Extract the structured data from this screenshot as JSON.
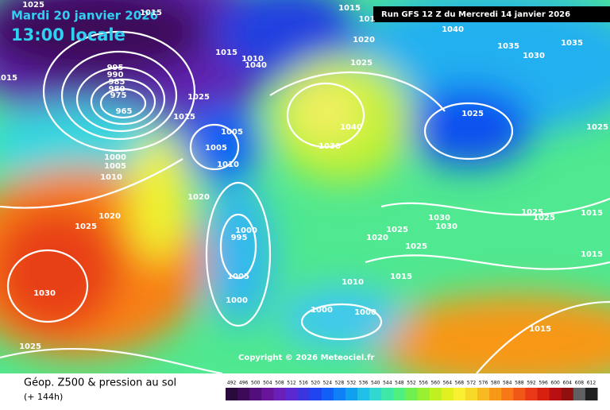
{
  "header": {
    "date": "Mardi 20 janvier 2026",
    "time": "13:00 locale",
    "run": "Run GFS 12 Z du Mercredi 14 janvier 2026"
  },
  "isobar_labels": [
    1025,
    1015,
    1015,
    101,
    1020,
    1040,
    1035,
    1030,
    1035,
    1015,
    1015,
    1010,
    1040,
    995,
    990,
    985,
    980,
    975,
    965,
    1025,
    1015,
    1005,
    1005,
    1010,
    1000,
    1005,
    1010,
    1020,
    1020,
    1025,
    1000,
    995,
    1005,
    1000,
    1030,
    1025,
    1025,
    1030,
    1040,
    1025,
    1030,
    1030,
    1025,
    1025,
    1020,
    1010,
    1015,
    1000,
    1000,
    1025,
    1025,
    1015,
    1015,
    1015,
    1025
  ],
  "copyright": "Copyright © 2026 Meteociel.fr",
  "legend": {
    "title": "Géop. Z500 & pression au sol",
    "lead_time": "(+ 144h)",
    "values": [
      492,
      496,
      500,
      504,
      508,
      512,
      516,
      520,
      524,
      528,
      532,
      536,
      540,
      544,
      548,
      552,
      556,
      560,
      564,
      568,
      572,
      576,
      580,
      584,
      588,
      592,
      596,
      600,
      604,
      608,
      612
    ],
    "colors": [
      "#2a0a3a",
      "#3d0a5a",
      "#520e7a",
      "#66159a",
      "#6a20b8",
      "#5a2ad0",
      "#3b35e0",
      "#1f45f0",
      "#1060f8",
      "#1080f8",
      "#10a0f0",
      "#20c0e8",
      "#30d8d0",
      "#40e8a8",
      "#50f080",
      "#70f050",
      "#98f030",
      "#c0f020",
      "#e0f020",
      "#f8f030",
      "#f8d828",
      "#f8b820",
      "#f89818",
      "#f87818",
      "#f05818",
      "#e83818",
      "#d82010",
      "#b81010",
      "#901010",
      "#606060",
      "#202020"
    ]
  }
}
